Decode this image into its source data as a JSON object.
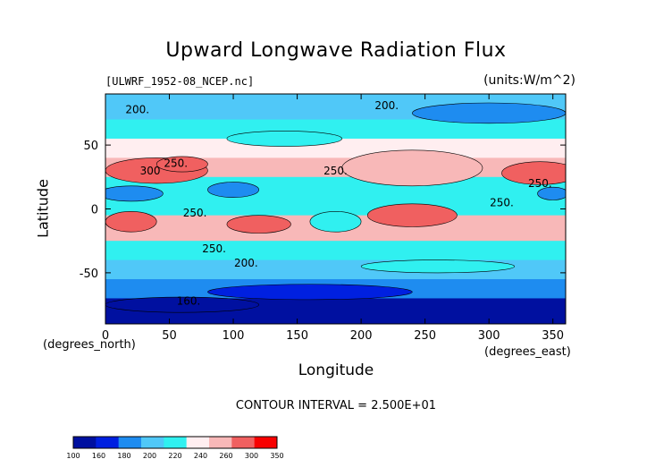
{
  "chart_data": {
    "type": "heatmap",
    "title": "Upward Longwave Radiation Flux",
    "subtitle_left": "[ULWRF_1952-08_NCEP.nc]",
    "subtitle_right": "(units:W/m^2)",
    "xlabel": "Longitude",
    "ylabel": "Latitude",
    "x_units": "(degrees_east)",
    "y_units": "(degrees_north)",
    "xlim": [
      0,
      360
    ],
    "ylim": [
      -90,
      90
    ],
    "x_ticks": [
      0,
      50,
      100,
      150,
      200,
      250,
      300,
      350
    ],
    "y_ticks": [
      50,
      0,
      -50
    ],
    "contour_interval_text": "CONTOUR INTERVAL = 2.500E+01",
    "contour_labels": [
      "200.",
      "200.",
      "300",
      "250.",
      "250.",
      "250.",
      "250.",
      "250.",
      "250.",
      "200.",
      "160."
    ],
    "colorbar": {
      "levels": [
        "100",
        "160",
        "180",
        "200",
        "220",
        "240",
        "260",
        "300",
        "350"
      ],
      "colors": [
        "#0010a0",
        "#0020e0",
        "#1e8cf0",
        "#50c8f8",
        "#30f0f0",
        "#ffeef0",
        "#f8b8b8",
        "#f06060",
        "#f80000"
      ]
    },
    "field": {
      "description_rows": "latitude bands from north to south, values in W/m^2",
      "bands": [
        {
          "lat": [
            90,
            70
          ],
          "value": 200
        },
        {
          "lat": [
            70,
            55
          ],
          "value": 225
        },
        {
          "lat": [
            55,
            40
          ],
          "value": 255
        },
        {
          "lat": [
            40,
            25
          ],
          "value": 270
        },
        {
          "lat": [
            25,
            10
          ],
          "value": 235
        },
        {
          "lat": [
            10,
            -5
          ],
          "value": 220
        },
        {
          "lat": [
            -5,
            -25
          ],
          "value": 265
        },
        {
          "lat": [
            -25,
            -40
          ],
          "value": 235
        },
        {
          "lat": [
            -40,
            -55
          ],
          "value": 215
        },
        {
          "lat": [
            -55,
            -70
          ],
          "value": 185
        },
        {
          "lat": [
            -70,
            -90
          ],
          "value": 150
        }
      ]
    }
  }
}
